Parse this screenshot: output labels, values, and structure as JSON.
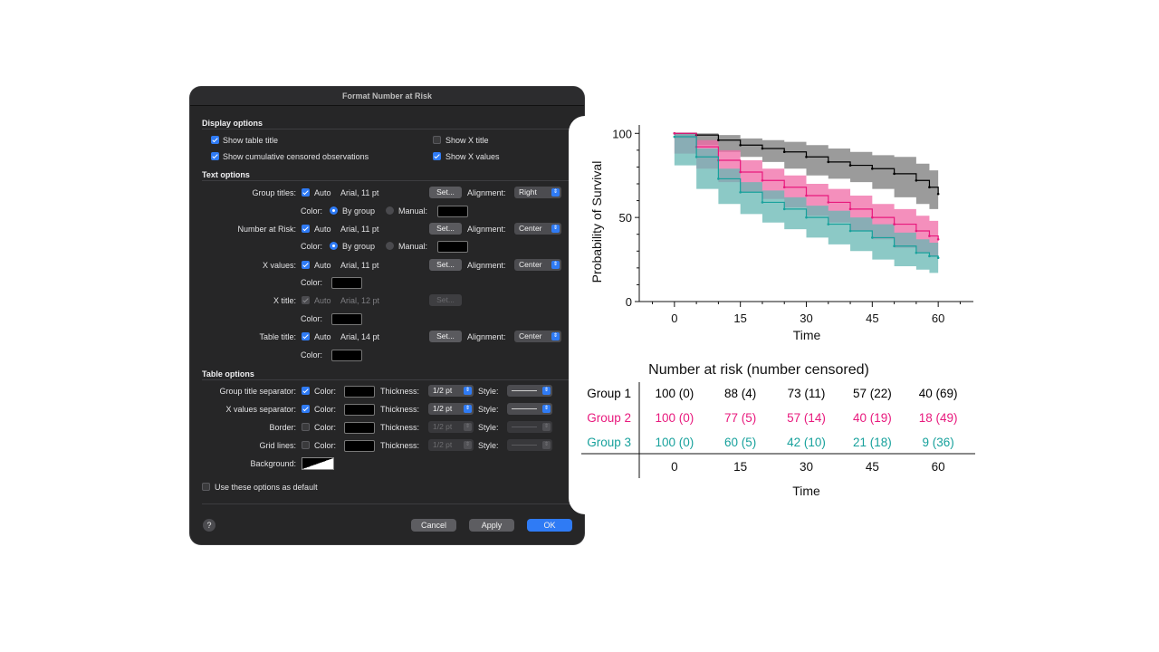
{
  "dialog": {
    "title": "Format Number at Risk",
    "display_options": {
      "header": "Display options",
      "show_table_title": "Show table title",
      "show_cumulative": "Show cumulative censored observations",
      "show_x_title": "Show X title",
      "show_x_values": "Show X values"
    },
    "text_options": {
      "header": "Text options",
      "auto": "Auto",
      "set": "Set...",
      "alignment": "Alignment:",
      "color": "Color:",
      "by_group": "By group",
      "manual": "Manual:",
      "group_titles": {
        "label": "Group titles:",
        "font": "Arial, 11 pt",
        "align": "Right"
      },
      "number_at_risk": {
        "label": "Number at Risk:",
        "font": "Arial, 11 pt",
        "align": "Center"
      },
      "x_values": {
        "label": "X values:",
        "font": "Arial, 11 pt",
        "align": "Center"
      },
      "x_title": {
        "label": "X title:",
        "font": "Arial, 12 pt"
      },
      "table_title": {
        "label": "Table title:",
        "font": "Arial, 14 pt",
        "align": "Center"
      }
    },
    "table_options": {
      "header": "Table options",
      "color": "Color:",
      "thickness": "Thickness:",
      "style": "Style:",
      "group_title_separator": {
        "label": "Group title separator:",
        "thickness": "1/2 pt"
      },
      "x_values_separator": {
        "label": "X values separator:",
        "thickness": "1/2 pt"
      },
      "border": {
        "label": "Border:",
        "thickness": "1/2 pt"
      },
      "grid_lines": {
        "label": "Grid lines:",
        "thickness": "1/2 pt"
      },
      "background": "Background:"
    },
    "use_default": "Use these options as default",
    "help": "?",
    "cancel": "Cancel",
    "apply": "Apply",
    "ok": "OK"
  },
  "chart_data": {
    "type": "line",
    "xlabel": "Time",
    "ylabel": "Probability of Survival",
    "xlim": [
      -8,
      68
    ],
    "ylim": [
      0,
      105
    ],
    "xticks": [
      0,
      15,
      30,
      45,
      60
    ],
    "yticks": [
      0,
      50,
      100
    ],
    "series": [
      {
        "name": "Group 1",
        "color": "#000000",
        "band": "#7a7a7a",
        "x": [
          0,
          5,
          10,
          15,
          20,
          25,
          30,
          35,
          40,
          45,
          50,
          55,
          58,
          60
        ],
        "y": [
          100,
          99,
          96,
          93,
          91,
          89,
          86,
          83,
          81,
          79,
          76,
          72,
          68,
          64
        ],
        "lo": [
          100,
          97,
          93,
          89,
          86,
          83,
          79,
          75,
          73,
          71,
          67,
          62,
          58,
          55
        ],
        "hi": [
          100,
          100,
          99,
          97,
          96,
          95,
          93,
          91,
          89,
          87,
          86,
          82,
          78,
          73
        ]
      },
      {
        "name": "Group 2",
        "color": "#e8197d",
        "band": "#f06aa6",
        "x": [
          0,
          5,
          10,
          15,
          20,
          25,
          30,
          35,
          40,
          45,
          50,
          55,
          58,
          60
        ],
        "y": [
          100,
          92,
          84,
          77,
          72,
          68,
          63,
          59,
          55,
          50,
          46,
          42,
          39,
          37
        ],
        "lo": [
          100,
          88,
          79,
          71,
          65,
          61,
          56,
          51,
          47,
          42,
          37,
          32,
          29,
          27
        ],
        "hi": [
          100,
          96,
          90,
          84,
          79,
          75,
          70,
          67,
          63,
          58,
          55,
          51,
          48,
          46
        ]
      },
      {
        "name": "Group 3",
        "color": "#17a19c",
        "band": "#66b7b3",
        "x": [
          0,
          5,
          10,
          15,
          20,
          25,
          30,
          35,
          40,
          45,
          50,
          55,
          58,
          60
        ],
        "y": [
          98,
          86,
          73,
          65,
          59,
          55,
          50,
          46,
          42,
          38,
          33,
          29,
          27,
          26
        ],
        "lo": [
          97,
          81,
          67,
          58,
          52,
          47,
          43,
          38,
          34,
          30,
          25,
          21,
          19,
          17
        ],
        "hi": [
          100,
          91,
          79,
          71,
          66,
          62,
          57,
          54,
          50,
          46,
          41,
          37,
          35,
          34
        ]
      }
    ]
  },
  "risk_table": {
    "title": "Number at risk (number censored)",
    "xlabel": "Time",
    "times": [
      "0",
      "15",
      "30",
      "45",
      "60"
    ],
    "groups": [
      {
        "name": "Group 1",
        "color": "#000000",
        "values": [
          "100 (0)",
          "88 (4)",
          "73 (11)",
          "57 (22)",
          "40 (69)"
        ]
      },
      {
        "name": "Group 2",
        "color": "#e8197d",
        "values": [
          "100 (0)",
          "77 (5)",
          "57 (14)",
          "40 (19)",
          "18 (49)"
        ]
      },
      {
        "name": "Group 3",
        "color": "#17a19c",
        "values": [
          "100 (0)",
          "60 (5)",
          "42 (10)",
          "21 (18)",
          "9 (36)"
        ]
      }
    ]
  }
}
